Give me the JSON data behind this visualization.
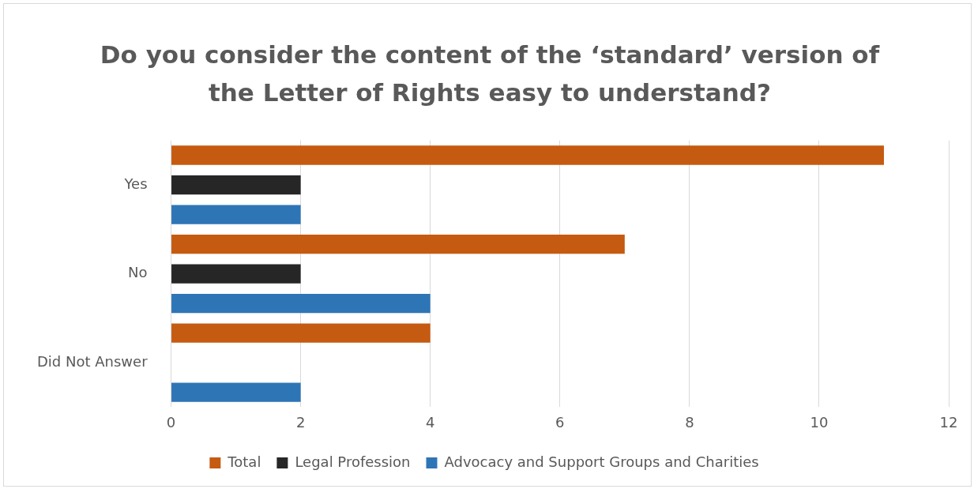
{
  "chart_data": {
    "type": "bar",
    "orientation": "horizontal",
    "title": "Do you consider the content of the ‘standard’ version of the Letter of Rights easy to understand?",
    "categories": [
      "Yes",
      "No",
      "Did Not Answer"
    ],
    "series": [
      {
        "name": "Total",
        "color": "#c55a11",
        "values": [
          11,
          7,
          4
        ]
      },
      {
        "name": "Legal Profession",
        "color": "#262626",
        "values": [
          2,
          2,
          0
        ]
      },
      {
        "name": "Advocacy and Support Groups and Charities",
        "color": "#2e75b6",
        "values": [
          2,
          4,
          2
        ]
      }
    ],
    "xlim": [
      0,
      12
    ],
    "xticks": [
      0,
      2,
      4,
      6,
      8,
      10,
      12
    ],
    "grid": "x",
    "legend": "bottom"
  }
}
